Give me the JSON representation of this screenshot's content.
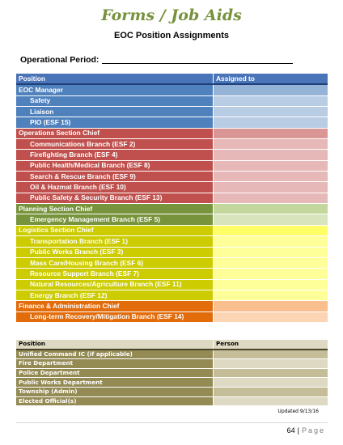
{
  "header": {
    "title": "Forms / Job Aids",
    "subtitle": "EOC Position Assignments",
    "operational_period_label": "Operational Period:"
  },
  "assignments": {
    "col_position": "Position",
    "col_assigned": "Assigned to",
    "rows": [
      {
        "label": "EOC Manager",
        "level": 0,
        "group": "blue"
      },
      {
        "label": "Safety",
        "level": 1,
        "group": "blue"
      },
      {
        "label": "Liaison",
        "level": 1,
        "group": "blue"
      },
      {
        "label": "PIO (ESF 15)",
        "level": 1,
        "group": "blue"
      },
      {
        "label": "Operations Section Chief",
        "level": 0,
        "group": "red"
      },
      {
        "label": "Communications Branch (ESF 2)",
        "level": 1,
        "group": "red"
      },
      {
        "label": "Firefighting Branch (ESF 4)",
        "level": 1,
        "group": "red"
      },
      {
        "label": "Public Health/Medical Branch (ESF 8)",
        "level": 1,
        "group": "red"
      },
      {
        "label": "Search & Rescue Branch (ESF 9)",
        "level": 1,
        "group": "red"
      },
      {
        "label": "Oil & Hazmat Branch (ESF 10)",
        "level": 1,
        "group": "red"
      },
      {
        "label": "Public Safety & Security Branch (ESF 13)",
        "level": 1,
        "group": "red"
      },
      {
        "label": "Planning Section Chief",
        "level": 0,
        "group": "green"
      },
      {
        "label": "Emergency Management Branch (ESF 5)",
        "level": 1,
        "group": "green"
      },
      {
        "label": "Logistics Section Chief",
        "level": 0,
        "group": "yellow"
      },
      {
        "label": "Transportation Branch (ESF 1)",
        "level": 1,
        "group": "yellow"
      },
      {
        "label": "Public Works Branch (ESF 3)",
        "level": 1,
        "group": "yellow"
      },
      {
        "label": "Mass Care/Housing Branch (ESF 6)",
        "level": 1,
        "group": "yellow"
      },
      {
        "label": "Resource Support Branch (ESF 7)",
        "level": 1,
        "group": "yellow"
      },
      {
        "label": "Natural Resources/Agriculture Branch (ESF 11)",
        "level": 1,
        "group": "yellow"
      },
      {
        "label": "Energy Branch (ESF 12)",
        "level": 1,
        "group": "yellow"
      },
      {
        "label": "Finance & Administration Chief",
        "level": 0,
        "group": "orange"
      },
      {
        "label": "Long-term Recovery/Mitigation Branch (ESF 14)",
        "level": 1,
        "group": "orange"
      }
    ]
  },
  "unified_command": {
    "col_position": "Position",
    "col_person": "Person",
    "rows": [
      "Unified Command IC (if applicable)",
      "Fire Department",
      "Police Department",
      "Public Works Department",
      "Township (Admin)",
      "Elected Official(s)"
    ]
  },
  "footer": {
    "updated": "Updated 9/13/16",
    "page_number": "64",
    "separator": "|",
    "page_label": "Page"
  }
}
